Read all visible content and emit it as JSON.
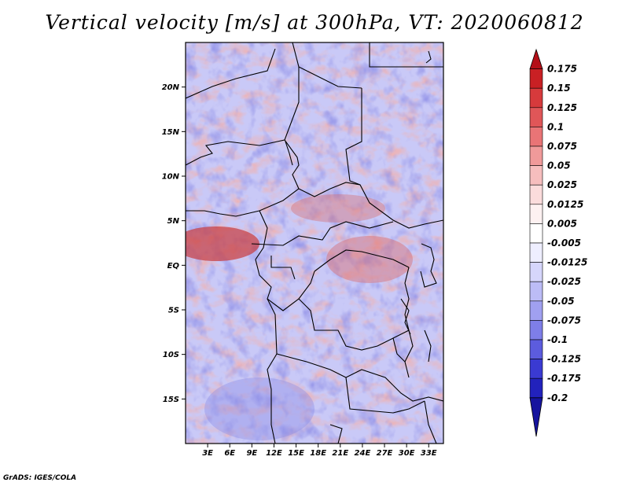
{
  "title": "Vertical velocity [m/s] at 300hPa, VT: 2020060812",
  "credit": "GrADS: IGES/COLA",
  "map": {
    "lat_labels": [
      "20N",
      "15N",
      "10N",
      "5N",
      "EQ",
      "5S",
      "10S",
      "15S"
    ],
    "lat_values": [
      20,
      15,
      10,
      5,
      0,
      -5,
      -10,
      -15
    ],
    "lon_labels": [
      "3E",
      "6E",
      "9E",
      "12E",
      "15E",
      "18E",
      "21E",
      "24E",
      "27E",
      "30E",
      "33E"
    ],
    "lon_values": [
      3,
      6,
      9,
      12,
      15,
      18,
      21,
      24,
      27,
      30,
      33
    ],
    "lon_range": [
      0,
      35
    ],
    "lat_range": [
      -20,
      25
    ]
  },
  "colorbar": {
    "labels": [
      "0.175",
      "0.15",
      "0.125",
      "0.1",
      "0.075",
      "0.05",
      "0.025",
      "0.0125",
      "0.005",
      "-0.005",
      "-0.0125",
      "-0.025",
      "-0.05",
      "-0.075",
      "-0.1",
      "-0.125",
      "-0.175",
      "-0.2"
    ],
    "colors": [
      "#b40f18",
      "#c92024",
      "#d73a3c",
      "#e05658",
      "#e97476",
      "#f09a9a",
      "#f6bebe",
      "#fbdcdc",
      "#fdf1f1",
      "#ffffff",
      "#eeeeff",
      "#d6d6fb",
      "#bcbcf6",
      "#a0a0f0",
      "#7e7ee8",
      "#5c5cde",
      "#3a3ad2",
      "#2222bc",
      "#16149e"
    ]
  }
}
